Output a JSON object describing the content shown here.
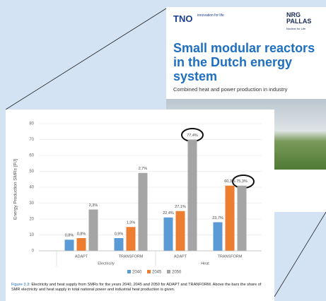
{
  "cover": {
    "logo_left": "TNO",
    "logo_left_tagline": "innovation for life",
    "logo_right": "NRG PALLAS",
    "logo_right_tagline": "Nuclear for Life",
    "title": "Small modular reactors in the Dutch energy system",
    "subtitle": "Combined heat and power production in industry"
  },
  "chart_data": {
    "type": "bar",
    "ylabel": "Energy Production SMRs [PJ]",
    "categories": [
      "ADAPT",
      "TRANSFORM",
      "ADAPT",
      "TRANSFORM"
    ],
    "group_labels": [
      "Electricity",
      "Heat"
    ],
    "series": [
      {
        "name": "2040",
        "color": "#5b9bd5",
        "values": [
          7,
          8,
          21,
          18
        ],
        "share_labels": [
          "0,8%",
          "0,9%",
          "22,4%",
          "23,7%"
        ]
      },
      {
        "name": "2045",
        "color": "#ed7d31",
        "values": [
          8,
          15,
          25,
          41
        ],
        "share_labels": [
          "0,8%",
          "1,3%",
          "27,1%",
          "60,3%"
        ]
      },
      {
        "name": "2050",
        "color": "#a5a5a5",
        "values": [
          26,
          49,
          70,
          41
        ],
        "share_labels": [
          "2,3%",
          "2,7%",
          "77,4%",
          "75,3%"
        ]
      }
    ],
    "ylim": [
      0,
      80
    ],
    "yticks": [
      0,
      10,
      20,
      30,
      40,
      50,
      60,
      70,
      80
    ],
    "grid": true
  },
  "caption": {
    "label": "Figure 3.3:",
    "text": "Electricity and heat supply from SMRs for the years 2040, 2045 and 2050 for ADAPT and TRANFORM. Above the bars the share of SMR electricity and heat supply in total national power and industrial heat production is given."
  }
}
